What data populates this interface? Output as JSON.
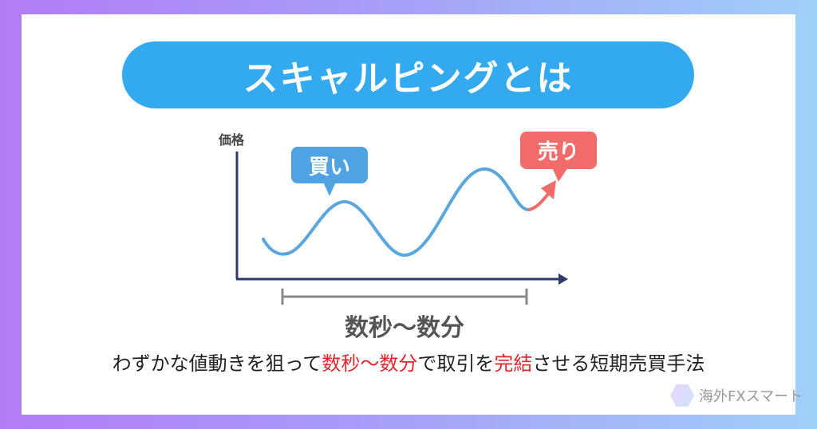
{
  "title": "スキャルピングとは",
  "diagram": {
    "y_axis_label": "価格",
    "buy_label": "買い",
    "sell_label": "売り",
    "range_label": "数秒〜数分",
    "colors": {
      "curve": "#5aa7e0",
      "buy": "#4fa3e3",
      "sell": "#f26b6b",
      "axis": "#2b3a66"
    }
  },
  "caption": {
    "before": "わずかな値動きを狙って",
    "highlight1": "数秒〜数分",
    "middle": "で取引を",
    "highlight2": "完結",
    "after": "させる短期売買手法"
  },
  "logo": {
    "text": "海外FXスマート",
    "icon": "chart-hexagon-icon"
  }
}
